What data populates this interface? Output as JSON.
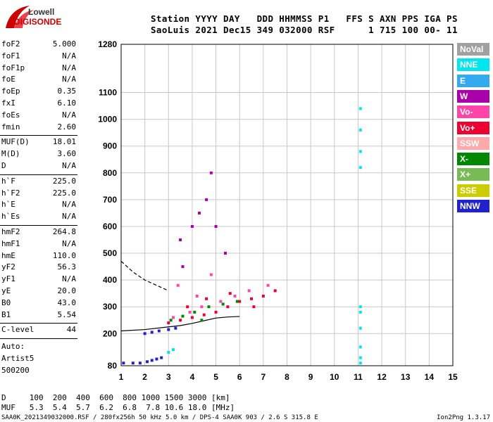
{
  "logo": {
    "line1": "Lowell",
    "line2": "DIGISONDE"
  },
  "header": {
    "line1": "Station YYYY DAY   DDD HHMMSS P1   FFS S AXN PPS IGA PS",
    "line2": "SaoLuis 2021 Dec15 349 032000 RSF      1 715 100 00- 11"
  },
  "parameters": {
    "groups": [
      [
        {
          "name": "foF2",
          "value": "5.000"
        },
        {
          "name": "foF1",
          "value": "N/A"
        },
        {
          "name": "foF1p",
          "value": "N/A"
        },
        {
          "name": "foE",
          "value": "N/A"
        },
        {
          "name": "foEp",
          "value": "0.35"
        },
        {
          "name": "fxI",
          "value": "6.10"
        },
        {
          "name": "foEs",
          "value": "N/A"
        },
        {
          "name": "fmin",
          "value": "2.60"
        }
      ],
      [
        {
          "name": "MUF(D)",
          "value": "18.01"
        },
        {
          "name": "M(D)",
          "value": "3.60"
        },
        {
          "name": "D",
          "value": "N/A"
        }
      ],
      [
        {
          "name": "h`F",
          "value": "225.0"
        },
        {
          "name": "h`F2",
          "value": "225.0"
        },
        {
          "name": "h`E",
          "value": "N/A"
        },
        {
          "name": "h`Es",
          "value": "N/A"
        }
      ],
      [
        {
          "name": "hmF2",
          "value": "264.8"
        },
        {
          "name": "hmF1",
          "value": "N/A"
        },
        {
          "name": "hmE",
          "value": "110.0"
        },
        {
          "name": "yF2",
          "value": "56.3"
        },
        {
          "name": "yF1",
          "value": "N/A"
        },
        {
          "name": "yE",
          "value": "20.0"
        },
        {
          "name": "B0",
          "value": "43.0"
        },
        {
          "name": "B1",
          "value": "5.54"
        }
      ],
      [
        {
          "name": "C-level",
          "value": "44"
        }
      ]
    ],
    "autoscaling": [
      "Auto:",
      "Artist5",
      "500200"
    ]
  },
  "legend": [
    {
      "label": "NoVal",
      "color": "#a0a0a0"
    },
    {
      "label": "NNE",
      "color": "#00e5ee"
    },
    {
      "label": "E",
      "color": "#33aaee"
    },
    {
      "label": "W",
      "color": "#aa00aa"
    },
    {
      "label": "Vo-",
      "color": "#ff44aa"
    },
    {
      "label": "Vo+",
      "color": "#ee0033"
    },
    {
      "label": "SSW",
      "color": "#ffaaaa"
    },
    {
      "label": "X-",
      "color": "#008800"
    },
    {
      "label": "X+",
      "color": "#77bb55"
    },
    {
      "label": "SSE",
      "color": "#cccc00"
    },
    {
      "label": "NNW",
      "color": "#2222cc"
    }
  ],
  "footer": {
    "row1": "D     100  200  400  600  800 1000 1500 3000 [km]",
    "row2": "MUF   5.3  5.4  5.7  6.2  6.8  7.8 10.6 18.0 [MHz]",
    "caption": "SAA0K_2021349032000.RSF / 280fx256h 50 kHz 5.0 km / DPS-4 SAA0K 903 / 2.6 S 315.8 E",
    "version": "Ion2Png 1.3.17"
  },
  "chart_data": {
    "type": "scatter",
    "x_ticks": [
      1,
      2,
      3,
      4,
      5,
      6,
      7,
      8,
      9,
      10,
      11,
      12,
      13,
      14,
      15
    ],
    "y_ticks": [
      80,
      200,
      300,
      400,
      500,
      600,
      700,
      800,
      900,
      1000,
      1100,
      1280
    ],
    "xlim": [
      1,
      15
    ],
    "ylim": [
      80,
      1280
    ],
    "grid": true,
    "series": [
      {
        "name": "NNW",
        "color": "#2222cc",
        "points": [
          [
            1.1,
            90
          ],
          [
            1.5,
            90
          ],
          [
            1.8,
            90
          ],
          [
            2.1,
            95
          ],
          [
            2.3,
            100
          ],
          [
            2.5,
            105
          ],
          [
            2.7,
            110
          ],
          [
            2.0,
            200
          ],
          [
            2.3,
            205
          ],
          [
            2.6,
            210
          ],
          [
            3.0,
            215
          ],
          [
            3.3,
            220
          ]
        ]
      },
      {
        "name": "Vo+",
        "color": "#ee0033",
        "points": [
          [
            3.0,
            240
          ],
          [
            3.5,
            250
          ],
          [
            4.0,
            260
          ],
          [
            4.5,
            270
          ],
          [
            5.0,
            280
          ],
          [
            5.5,
            300
          ],
          [
            6.0,
            320
          ],
          [
            6.5,
            330
          ],
          [
            7.0,
            340
          ],
          [
            7.5,
            360
          ],
          [
            3.8,
            300
          ],
          [
            4.6,
            330
          ],
          [
            5.6,
            350
          ],
          [
            6.6,
            300
          ]
        ]
      },
      {
        "name": "Vo-",
        "color": "#ff44aa",
        "points": [
          [
            3.2,
            260
          ],
          [
            3.9,
            280
          ],
          [
            4.4,
            300
          ],
          [
            5.2,
            320
          ],
          [
            5.8,
            340
          ],
          [
            6.4,
            360
          ],
          [
            7.2,
            380
          ],
          [
            4.2,
            340
          ],
          [
            4.8,
            420
          ],
          [
            3.4,
            380
          ]
        ]
      },
      {
        "name": "X-",
        "color": "#008800",
        "points": [
          [
            3.1,
            250
          ],
          [
            3.6,
            265
          ],
          [
            4.1,
            280
          ],
          [
            4.7,
            300
          ],
          [
            5.3,
            310
          ],
          [
            5.9,
            320
          ],
          [
            4.4,
            250
          ]
        ]
      },
      {
        "name": "NNE",
        "color": "#00e5ee",
        "points": [
          [
            11.1,
            1040
          ],
          [
            11.1,
            960
          ],
          [
            11.1,
            880
          ],
          [
            11.1,
            820
          ],
          [
            11.1,
            300
          ],
          [
            11.1,
            280
          ],
          [
            11.1,
            220
          ],
          [
            11.1,
            150
          ],
          [
            11.1,
            110
          ],
          [
            11.1,
            90
          ],
          [
            3.0,
            130
          ],
          [
            3.2,
            140
          ]
        ]
      },
      {
        "name": "W",
        "color": "#aa00aa",
        "points": [
          [
            3.5,
            550
          ],
          [
            4.0,
            600
          ],
          [
            4.3,
            650
          ],
          [
            4.6,
            700
          ],
          [
            4.8,
            800
          ],
          [
            5.0,
            600
          ],
          [
            3.6,
            450
          ],
          [
            5.4,
            500
          ]
        ]
      }
    ],
    "fitted_traces": [
      {
        "name": "O-trace",
        "style": "solid",
        "x": [
          1.0,
          2.0,
          3.0,
          3.5,
          4.0,
          4.5,
          5.0,
          5.5,
          6.0
        ],
        "y": [
          210,
          215,
          225,
          230,
          238,
          248,
          258,
          262,
          264
        ]
      },
      {
        "name": "X-trace",
        "style": "dashed",
        "x": [
          1.0,
          1.5,
          2.0,
          2.5,
          3.0
        ],
        "y": [
          470,
          430,
          400,
          380,
          360
        ]
      }
    ]
  }
}
